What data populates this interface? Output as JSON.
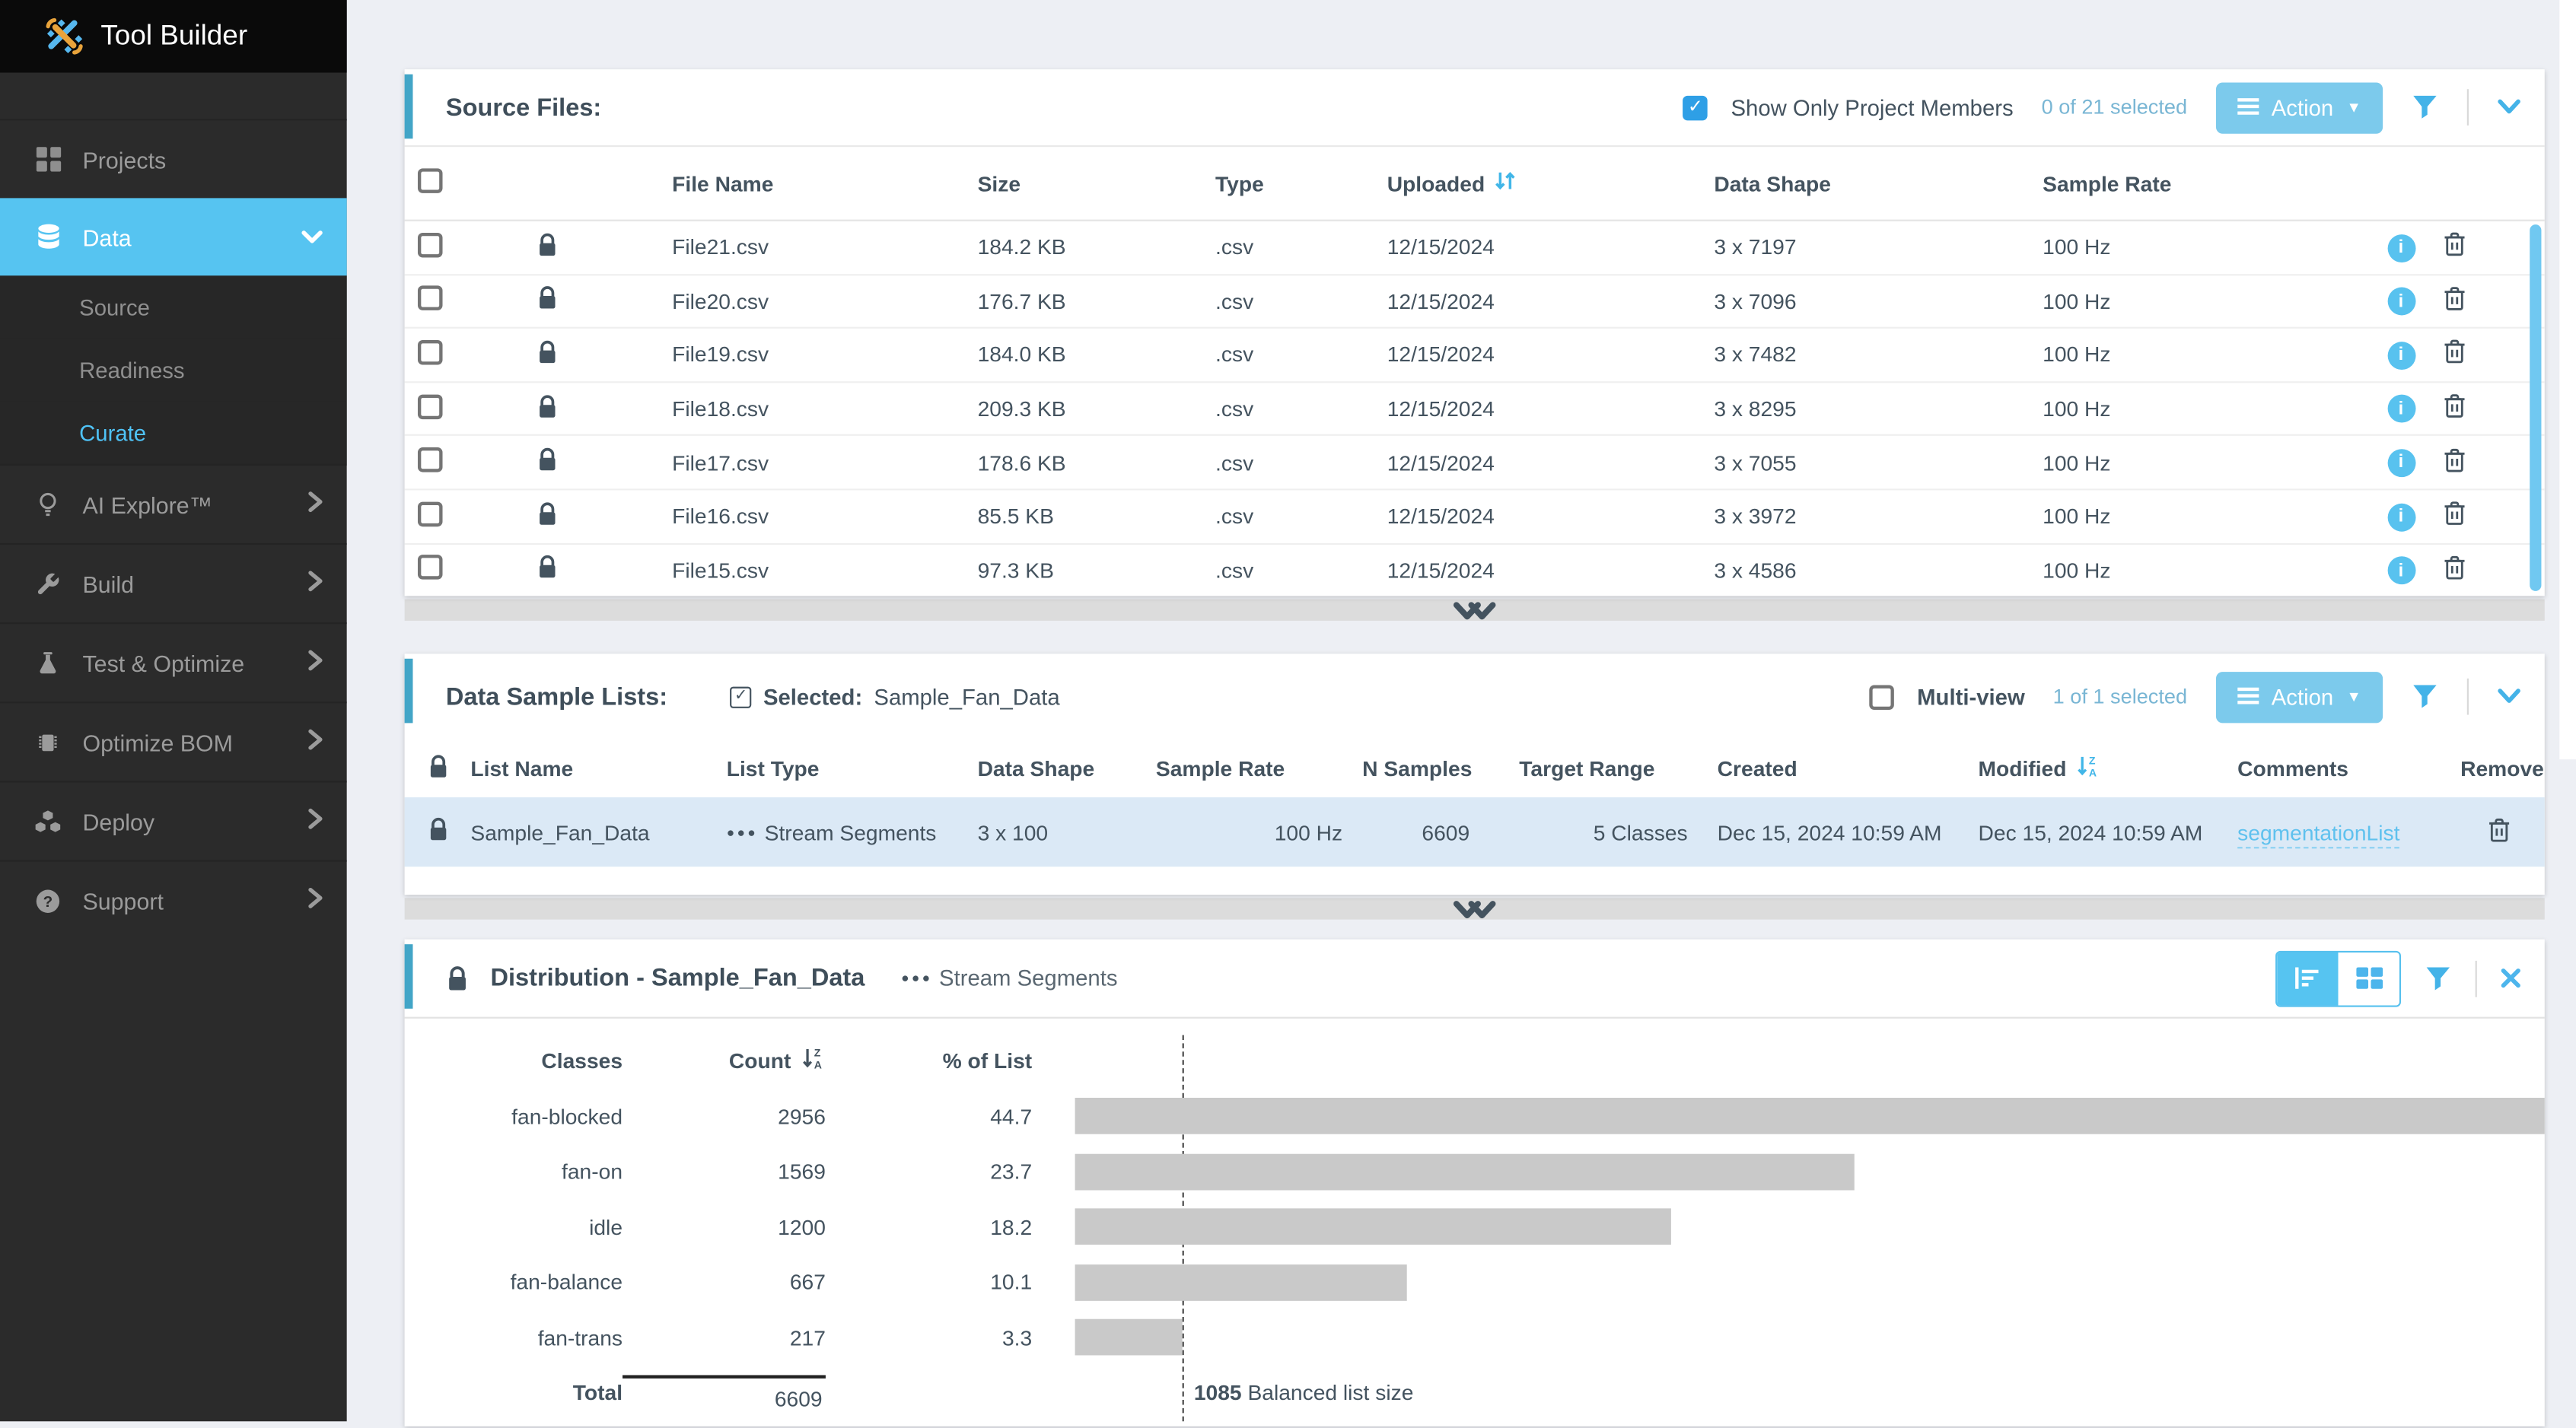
{
  "app": {
    "title": "Tool Builder"
  },
  "sidebar": {
    "items": [
      {
        "label": "Projects"
      },
      {
        "label": "Data",
        "active": true,
        "children": [
          {
            "label": "Source"
          },
          {
            "label": "Readiness"
          },
          {
            "label": "Curate",
            "active": true
          }
        ]
      },
      {
        "label": "AI Explore™"
      },
      {
        "label": "Build"
      },
      {
        "label": "Test & Optimize"
      },
      {
        "label": "Optimize BOM"
      },
      {
        "label": "Deploy"
      },
      {
        "label": "Support"
      }
    ]
  },
  "source_files": {
    "title": "Source Files:",
    "show_only_checkbox": {
      "label": "Show Only Project Members",
      "checked": true
    },
    "selection_summary": "0 of 21 selected",
    "action_button_label": "Action",
    "columns": [
      "File Name",
      "Size",
      "Type",
      "Uploaded",
      "Data Shape",
      "Sample Rate"
    ],
    "sorted_by": "Uploaded",
    "rows": [
      {
        "file_name": "File21.csv",
        "size": "184.2 KB",
        "type": ".csv",
        "uploaded": "12/15/2024",
        "data_shape": "3 x 7197",
        "sample_rate": "100 Hz"
      },
      {
        "file_name": "File20.csv",
        "size": "176.7 KB",
        "type": ".csv",
        "uploaded": "12/15/2024",
        "data_shape": "3 x 7096",
        "sample_rate": "100 Hz"
      },
      {
        "file_name": "File19.csv",
        "size": "184.0 KB",
        "type": ".csv",
        "uploaded": "12/15/2024",
        "data_shape": "3 x 7482",
        "sample_rate": "100 Hz"
      },
      {
        "file_name": "File18.csv",
        "size": "209.3 KB",
        "type": ".csv",
        "uploaded": "12/15/2024",
        "data_shape": "3 x 8295",
        "sample_rate": "100 Hz"
      },
      {
        "file_name": "File17.csv",
        "size": "178.6 KB",
        "type": ".csv",
        "uploaded": "12/15/2024",
        "data_shape": "3 x 7055",
        "sample_rate": "100 Hz"
      },
      {
        "file_name": "File16.csv",
        "size": "85.5 KB",
        "type": ".csv",
        "uploaded": "12/15/2024",
        "data_shape": "3 x 3972",
        "sample_rate": "100 Hz"
      },
      {
        "file_name": "File15.csv",
        "size": "97.3 KB",
        "type": ".csv",
        "uploaded": "12/15/2024",
        "data_shape": "3 x 4586",
        "sample_rate": "100 Hz"
      }
    ]
  },
  "data_sample_lists": {
    "title": "Data Sample Lists:",
    "selected_label": "Selected:",
    "selected_value": "Sample_Fan_Data",
    "multi_view_checkbox": {
      "label": "Multi-view",
      "checked": false
    },
    "selection_summary": "1 of 1 selected",
    "action_button_label": "Action",
    "columns": [
      "List Name",
      "List Type",
      "Data Shape",
      "Sample Rate",
      "N Samples",
      "Target Range",
      "Created",
      "Modified",
      "Comments",
      "Remove"
    ],
    "sorted_by": "Modified",
    "row": {
      "selected": true,
      "list_name": "Sample_Fan_Data",
      "list_type": "Stream Segments",
      "data_shape": "3 x 100",
      "sample_rate": "100 Hz",
      "n_samples": "6609",
      "target_range": "5 Classes",
      "created": "Dec 15, 2024 10:59 AM",
      "modified": "Dec 15, 2024 10:59 AM",
      "comments_link": "segmentationList"
    }
  },
  "distribution": {
    "title": "Distribution - Sample_Fan_Data",
    "list_type": "Stream Segments",
    "columns": [
      "Classes",
      "Count",
      "% of List"
    ],
    "rows": [
      {
        "class": "fan-blocked",
        "count": 2956,
        "pct": "44.7"
      },
      {
        "class": "fan-on",
        "count": 1569,
        "pct": "23.7"
      },
      {
        "class": "idle",
        "count": 1200,
        "pct": "18.2"
      },
      {
        "class": "fan-balance",
        "count": 667,
        "pct": "10.1"
      },
      {
        "class": "fan-trans",
        "count": 217,
        "pct": "3.3"
      }
    ],
    "total_label": "Total",
    "total_count": "6609",
    "balanced_list_size": "1085",
    "balanced_list_label": "Balanced list size"
  },
  "chart_data": {
    "type": "bar",
    "orientation": "horizontal",
    "title": "Distribution - Sample_Fan_Data",
    "categories": [
      "fan-blocked",
      "fan-on",
      "idle",
      "fan-balance",
      "fan-trans"
    ],
    "values": [
      2956,
      1569,
      1200,
      667,
      217
    ],
    "percentages": [
      44.7,
      23.7,
      18.2,
      10.1,
      3.3
    ],
    "total": 6609,
    "annotations": [
      {
        "label": "Balanced list size",
        "value": 1085
      }
    ],
    "bar_color": "#c9c9c9"
  },
  "colors": {
    "accent_bar": "#42a5c7",
    "primary_blue": "#56c4f1",
    "action_button": "#7ccaec",
    "link": "#5fc1ee",
    "selected_row": "#dbe9f6",
    "sidebar_bg": "#2b2b2b",
    "text_dark": "#44535f",
    "bar_gray": "#c9c9c9"
  }
}
